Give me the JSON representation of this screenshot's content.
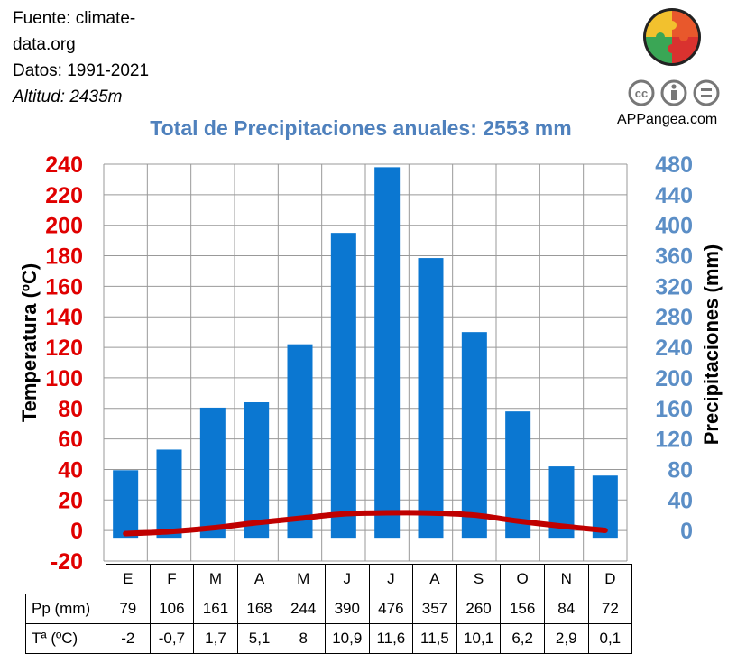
{
  "source": {
    "line1": "Fuente: climate-",
    "line2": "data.org",
    "line3": "Datos: 1991-2021",
    "line4": "Altitud: 2435m"
  },
  "brand": "APPangea.com",
  "chart_data": {
    "type": "bar",
    "title": "Total de Precipitaciones anuales: 2553 mm",
    "categories": [
      "E",
      "F",
      "M",
      "A",
      "M",
      "J",
      "J",
      "A",
      "S",
      "O",
      "N",
      "D"
    ],
    "series": [
      {
        "name": "Pp (mm)",
        "type": "bar",
        "axis": "right",
        "color": "#0b77d1",
        "values": [
          79,
          106,
          161,
          168,
          244,
          390,
          476,
          357,
          260,
          156,
          84,
          72
        ]
      },
      {
        "name": "Tª (ºC)",
        "type": "line",
        "axis": "left",
        "color": "#c00000",
        "values": [
          -2,
          -0.7,
          1.7,
          5.1,
          8,
          10.9,
          11.6,
          11.5,
          10.1,
          6.2,
          2.9,
          0.1
        ]
      }
    ],
    "ylabel_left": "Temperatura (ºC)",
    "ylabel_right": "Precipitaciones (mm)",
    "ylim_left": [
      -20,
      240
    ],
    "ylim_right": [
      0,
      480
    ],
    "yticks_left": [
      "240",
      "220",
      "200",
      "180",
      "160",
      "140",
      "120",
      "100",
      "80",
      "60",
      "40",
      "20",
      "0",
      "-20"
    ],
    "yticks_right": [
      "480",
      "440",
      "400",
      "360",
      "320",
      "280",
      "240",
      "200",
      "160",
      "120",
      "80",
      "40",
      "0"
    ],
    "grid": true,
    "table": {
      "row1_label": "Pp (mm)",
      "row1": [
        "79",
        "106",
        "161",
        "168",
        "244",
        "390",
        "476",
        "357",
        "260",
        "156",
        "84",
        "72"
      ],
      "row2_label": "Tª (ºC)",
      "row2": [
        "-2",
        "-0,7",
        "1,7",
        "5,1",
        "8",
        "10,9",
        "11,6",
        "11,5",
        "10,1",
        "6,2",
        "2,9",
        "0,1"
      ]
    }
  },
  "colors": {
    "left_axis": "#e00000",
    "right_axis": "#5b8ec6",
    "title": "#4f81bd",
    "bar": "#0b77d1",
    "line": "#c00000"
  }
}
